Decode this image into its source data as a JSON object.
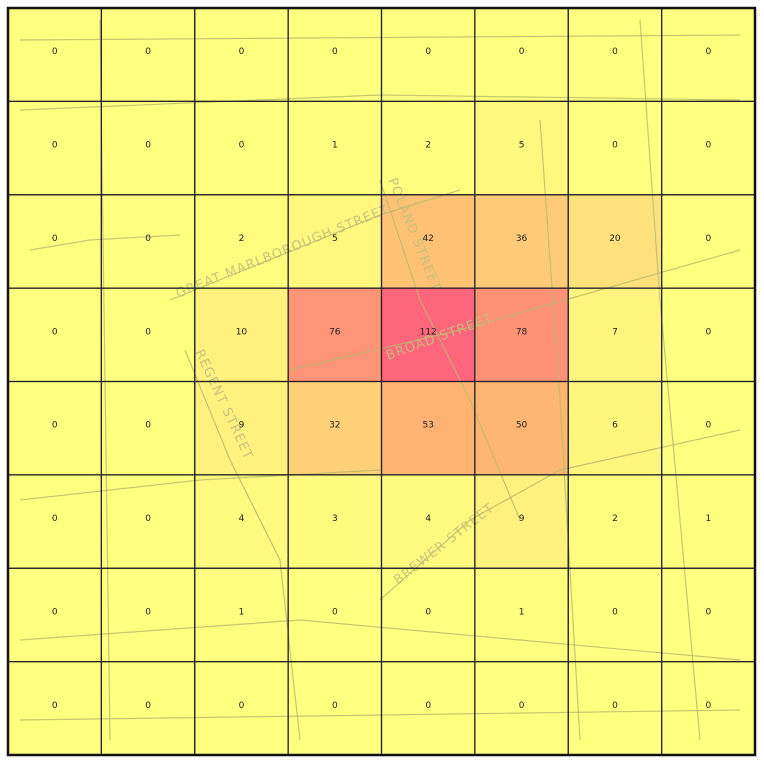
{
  "map": {
    "color_scale": [
      "#ffff80",
      "#ffa870",
      "#ff4a7a"
    ],
    "grid": [
      [
        0,
        0,
        0,
        0,
        0,
        0,
        0,
        0
      ],
      [
        0,
        0,
        0,
        1,
        2,
        5,
        0,
        0
      ],
      [
        0,
        0,
        2,
        5,
        42,
        36,
        20,
        0
      ],
      [
        0,
        0,
        10,
        76,
        112,
        78,
        7,
        0
      ],
      [
        0,
        0,
        9,
        32,
        53,
        50,
        6,
        0
      ],
      [
        0,
        0,
        4,
        3,
        4,
        9,
        2,
        1
      ],
      [
        0,
        0,
        1,
        0,
        0,
        1,
        0,
        0
      ],
      [
        0,
        0,
        0,
        0,
        0,
        0,
        0,
        0
      ]
    ],
    "streets": [
      "GREAT MARLBOROUGH STREET",
      "POLAND STREET",
      "BROAD STREET",
      "REGENT STREET",
      "BREWER STREET"
    ]
  }
}
